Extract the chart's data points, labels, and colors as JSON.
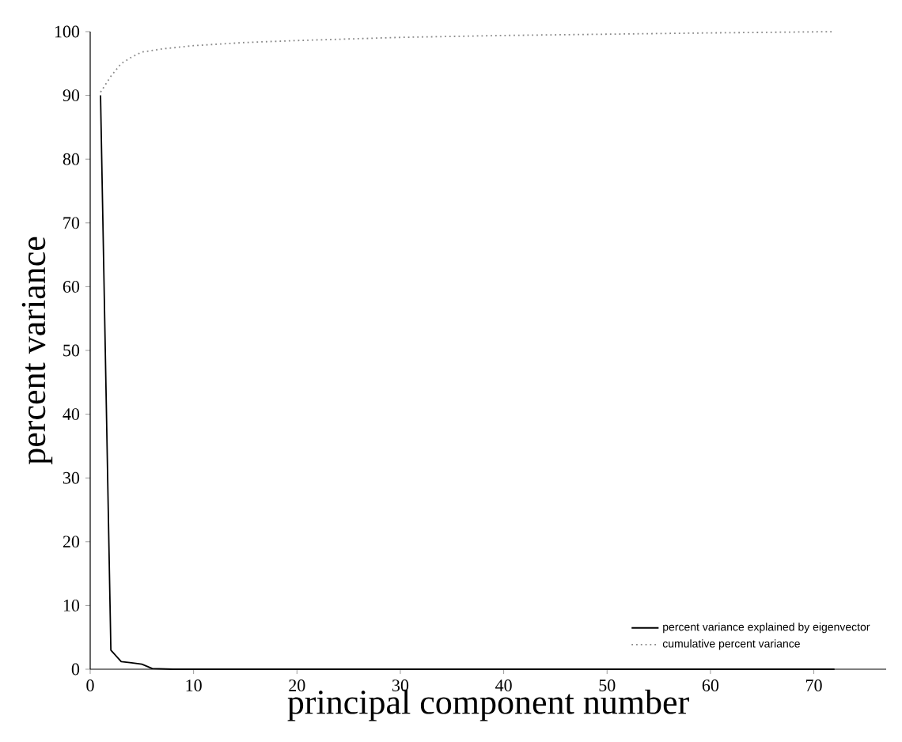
{
  "chart_data": {
    "type": "line",
    "xlabel": "principal component number",
    "ylabel": "percent variance",
    "xlim": [
      0,
      77
    ],
    "ylim": [
      0,
      100
    ],
    "xticks": [
      0,
      10,
      20,
      30,
      40,
      50,
      60,
      70
    ],
    "yticks": [
      0,
      10,
      20,
      30,
      40,
      50,
      60,
      70,
      80,
      90,
      100
    ],
    "legend": "bottom right",
    "grid": false,
    "marker": "none",
    "series": [
      {
        "name": "percent variance explained by eigenvector",
        "color": "#000000",
        "line_style": "solid",
        "x": [
          1,
          2,
          3,
          4,
          5,
          6,
          8,
          10,
          20,
          30,
          40,
          50,
          60,
          72
        ],
        "values": [
          90,
          3,
          1.2,
          1,
          0.8,
          0.1,
          0,
          0,
          0,
          0,
          0,
          0,
          0,
          0
        ]
      },
      {
        "name": "cumulative percent variance",
        "color": "#888888",
        "line_style": "dotted",
        "x": [
          1,
          2,
          3,
          4,
          5,
          7,
          10,
          15,
          20,
          30,
          40,
          50,
          60,
          72
        ],
        "values": [
          90.5,
          93,
          95,
          96,
          96.8,
          97.3,
          97.8,
          98.3,
          98.6,
          99.1,
          99.4,
          99.6,
          99.8,
          100
        ]
      }
    ]
  }
}
